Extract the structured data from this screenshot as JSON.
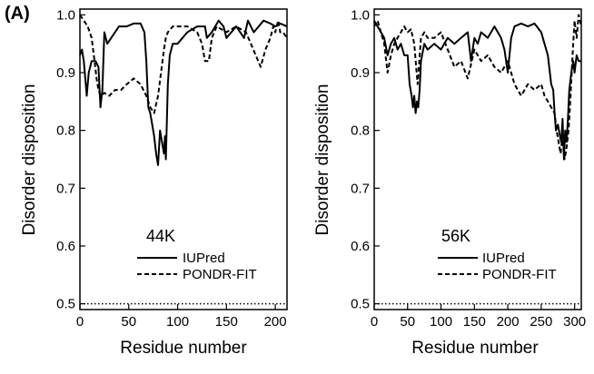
{
  "figure": {
    "panel_label": "(A)"
  },
  "chart_data": [
    {
      "type": "line",
      "panel_label": "44K",
      "xlabel": "Residue number",
      "ylabel": "Disorder disposition",
      "xlim": [
        0,
        212
      ],
      "ylim": [
        0.49,
        1.01
      ],
      "xticks": [
        0,
        50,
        100,
        150,
        200
      ],
      "yticks": [
        0.5,
        0.6,
        0.7,
        0.8,
        0.9,
        1.0
      ],
      "ytick_labels": [
        "0.5",
        "0.6",
        "0.7",
        "0.8",
        "0.9",
        "1.0"
      ],
      "legend_position": "center-right",
      "threshold": 0.5,
      "series": [
        {
          "name": "IUPred",
          "style": "solid",
          "x": [
            0,
            2,
            4,
            7,
            9,
            12,
            16,
            19,
            21,
            23,
            25,
            28,
            32,
            40,
            48,
            55,
            62,
            66,
            68,
            70,
            72,
            74,
            76,
            78,
            80,
            81,
            82,
            84,
            86,
            87,
            88,
            90,
            92,
            95,
            100,
            105,
            110,
            120,
            128,
            130,
            135,
            142,
            147,
            150,
            155,
            160,
            168,
            172,
            178,
            183,
            188,
            195,
            200,
            205,
            212
          ],
          "y": [
            0.93,
            0.94,
            0.92,
            0.86,
            0.9,
            0.92,
            0.92,
            0.91,
            0.84,
            0.87,
            0.97,
            0.95,
            0.96,
            0.98,
            0.98,
            0.985,
            0.985,
            0.97,
            0.92,
            0.84,
            0.83,
            0.81,
            0.79,
            0.76,
            0.74,
            0.77,
            0.8,
            0.78,
            0.76,
            0.79,
            0.75,
            0.88,
            0.93,
            0.95,
            0.95,
            0.96,
            0.97,
            0.98,
            0.98,
            0.96,
            0.97,
            0.99,
            0.98,
            0.96,
            0.97,
            0.98,
            0.96,
            0.99,
            0.97,
            0.98,
            0.99,
            0.985,
            0.98,
            0.985,
            0.98
          ]
        },
        {
          "name": "PONDR-FIT",
          "style": "dashed",
          "x": [
            0,
            4,
            8,
            12,
            15,
            17,
            19,
            21,
            25,
            30,
            36,
            42,
            48,
            55,
            62,
            68,
            72,
            76,
            80,
            83,
            86,
            88,
            90,
            95,
            100,
            110,
            120,
            125,
            128,
            132,
            135,
            140,
            150,
            160,
            170,
            175,
            180,
            185,
            190,
            195,
            198,
            200,
            203,
            205,
            208,
            212
          ],
          "y": [
            1.0,
            0.99,
            0.98,
            0.96,
            0.92,
            0.89,
            0.87,
            0.86,
            0.865,
            0.86,
            0.87,
            0.87,
            0.88,
            0.89,
            0.88,
            0.86,
            0.84,
            0.83,
            0.86,
            0.9,
            0.94,
            0.96,
            0.97,
            0.98,
            0.98,
            0.98,
            0.97,
            0.95,
            0.92,
            0.92,
            0.96,
            0.98,
            0.97,
            0.98,
            0.97,
            0.95,
            0.93,
            0.91,
            0.94,
            0.96,
            0.98,
            0.97,
            0.99,
            0.97,
            0.97,
            0.96
          ]
        }
      ]
    },
    {
      "type": "line",
      "panel_label": "56K",
      "xlabel": "Residue number",
      "ylabel": "Disorder disposition",
      "xlim": [
        0,
        310
      ],
      "ylim": [
        0.49,
        1.01
      ],
      "xticks": [
        0,
        50,
        100,
        150,
        200,
        250,
        300
      ],
      "yticks": [
        0.5,
        0.6,
        0.7,
        0.8,
        0.9,
        1.0
      ],
      "ytick_labels": [
        "0.5",
        "0.6",
        "0.7",
        "0.8",
        "0.9",
        "1.0"
      ],
      "legend_position": "center-right",
      "threshold": 0.5,
      "series": [
        {
          "name": "IUPred",
          "style": "solid",
          "x": [
            0,
            5,
            10,
            15,
            20,
            25,
            30,
            35,
            40,
            45,
            50,
            53,
            56,
            58,
            60,
            62,
            64,
            66,
            68,
            70,
            75,
            80,
            90,
            100,
            110,
            120,
            130,
            140,
            145,
            150,
            155,
            160,
            170,
            180,
            190,
            195,
            200,
            205,
            210,
            220,
            230,
            240,
            250,
            255,
            260,
            265,
            268,
            270,
            272,
            275,
            278,
            280,
            282,
            284,
            286,
            288,
            290,
            292,
            295,
            298,
            300,
            303,
            306,
            310
          ],
          "y": [
            0.99,
            0.98,
            0.97,
            0.96,
            0.93,
            0.95,
            0.96,
            0.94,
            0.95,
            0.93,
            0.93,
            0.88,
            0.86,
            0.84,
            0.86,
            0.83,
            0.85,
            0.84,
            0.87,
            0.92,
            0.95,
            0.94,
            0.95,
            0.94,
            0.96,
            0.95,
            0.96,
            0.97,
            0.92,
            0.96,
            0.95,
            0.97,
            0.96,
            0.98,
            0.96,
            0.94,
            0.9,
            0.96,
            0.98,
            0.985,
            0.98,
            0.985,
            0.97,
            0.95,
            0.93,
            0.88,
            0.87,
            0.83,
            0.8,
            0.81,
            0.79,
            0.78,
            0.82,
            0.75,
            0.8,
            0.78,
            0.82,
            0.87,
            0.9,
            0.92,
            0.9,
            0.93,
            0.92,
            0.92
          ]
        },
        {
          "name": "PONDR-FIT",
          "style": "dashed",
          "x": [
            0,
            5,
            10,
            15,
            20,
            25,
            30,
            35,
            40,
            45,
            50,
            55,
            60,
            65,
            70,
            75,
            80,
            90,
            100,
            110,
            120,
            130,
            140,
            150,
            160,
            170,
            180,
            190,
            200,
            210,
            220,
            230,
            240,
            250,
            255,
            260,
            265,
            270,
            273,
            276,
            279,
            282,
            285,
            288,
            291,
            294,
            297,
            300,
            303,
            306,
            310
          ],
          "y": [
            0.98,
            0.99,
            0.97,
            0.95,
            0.9,
            0.93,
            0.95,
            0.96,
            0.97,
            0.98,
            0.97,
            0.975,
            0.95,
            0.88,
            0.96,
            0.97,
            0.96,
            0.96,
            0.97,
            0.94,
            0.91,
            0.92,
            0.89,
            0.94,
            0.92,
            0.93,
            0.91,
            0.9,
            0.92,
            0.88,
            0.86,
            0.88,
            0.87,
            0.88,
            0.86,
            0.85,
            0.84,
            0.83,
            0.8,
            0.78,
            0.76,
            0.79,
            0.75,
            0.77,
            0.8,
            0.86,
            0.93,
            0.99,
            0.96,
            1.0,
            0.98
          ]
        }
      ]
    }
  ]
}
